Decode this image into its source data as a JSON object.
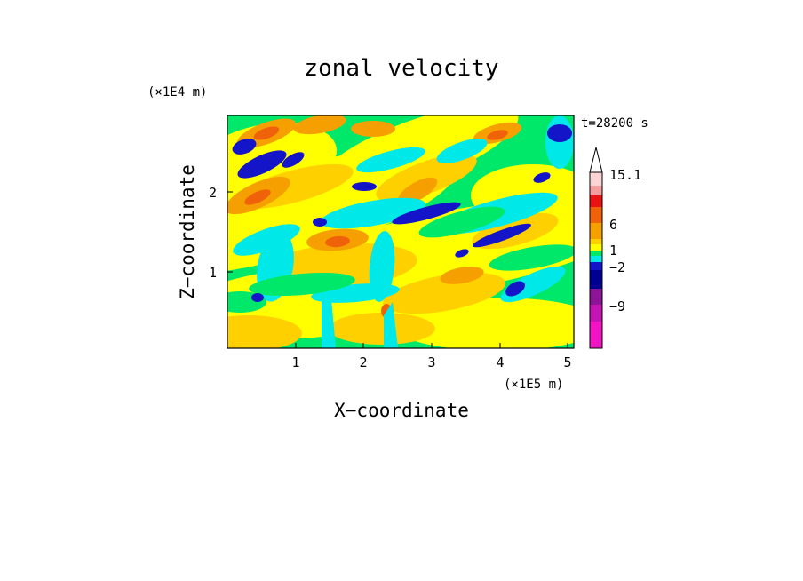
{
  "chart_data": {
    "type": "heatmap",
    "title": "zonal velocity",
    "xlabel": "X−coordinate",
    "ylabel": "Z−coordinate",
    "x_unit": "(×1E5 m)",
    "y_unit": "(×1E4 m)",
    "time_label": "t=28200 s",
    "x_ticks": [
      "1",
      "2",
      "3",
      "4",
      "5"
    ],
    "y_ticks": [
      "1",
      "2"
    ],
    "xlim": [
      0,
      5.12
    ],
    "ylim": [
      0,
      2.9
    ],
    "colorbar": {
      "tick_labels": [
        "15.1",
        "6",
        "1",
        "−2",
        "−9"
      ],
      "levels_top_to_bottom": [
        "#fbd4d4",
        "#f59c9c",
        "#e81414",
        "#f0620a",
        "#f5a000",
        "#ffd000",
        "#ffff00",
        "#00e86a",
        "#00e8e8",
        "#1414c8",
        "#000090",
        "#8c1496",
        "#c414b4",
        "#f014c4"
      ]
    },
    "field_colors": {
      "strong_negative": "#1414c8",
      "negative": "#00e8e8",
      "near_zero": "#00e86a",
      "weak_positive": "#ffff00",
      "positive": "#ffd000",
      "moderate_positive": "#f5a000",
      "strong_positive": "#f0620a"
    }
  }
}
